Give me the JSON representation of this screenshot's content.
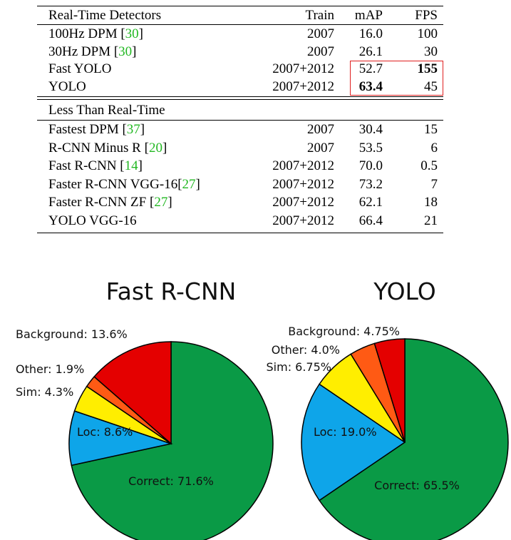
{
  "table": {
    "header": {
      "section1": "Real-Time Detectors",
      "train": "Train",
      "map": "mAP",
      "fps": "FPS"
    },
    "realtime_rows": [
      {
        "name": "100Hz DPM [",
        "ref": "30",
        "close": "]",
        "train": "2007",
        "map": "16.0",
        "fps": "100"
      },
      {
        "name": "30Hz DPM [",
        "ref": "30",
        "close": "]",
        "train": "2007",
        "map": "26.1",
        "fps": "30"
      },
      {
        "name": "Fast YOLO",
        "ref": "",
        "close": "",
        "train": "2007+2012",
        "map": "52.7",
        "fps": "155"
      },
      {
        "name": "YOLO",
        "ref": "",
        "close": "",
        "train": "2007+2012",
        "map": "63.4",
        "fps": "45"
      }
    ],
    "section2": "Less Than Real-Time",
    "slow_rows": [
      {
        "name": "Fastest DPM [",
        "ref": "37",
        "close": "]",
        "train": "2007",
        "map": "30.4",
        "fps": "15"
      },
      {
        "name": "R-CNN Minus R [",
        "ref": "20",
        "close": "]",
        "train": "2007",
        "map": "53.5",
        "fps": "6"
      },
      {
        "name": "Fast R-CNN [",
        "ref": "14",
        "close": "]",
        "train": "2007+2012",
        "map": "70.0",
        "fps": "0.5"
      },
      {
        "name": "Faster R-CNN VGG-16[",
        "ref": "27",
        "close": "]",
        "train": "2007+2012",
        "map": "73.2",
        "fps": "7"
      },
      {
        "name": "Faster R-CNN ZF [",
        "ref": "27",
        "close": "]",
        "train": "2007+2012",
        "map": "62.1",
        "fps": "18"
      },
      {
        "name": "YOLO VGG-16",
        "ref": "",
        "close": "",
        "train": "2007+2012",
        "map": "66.4",
        "fps": "21"
      }
    ]
  },
  "chart_data": [
    {
      "type": "pie",
      "title": "Fast R-CNN",
      "slices": [
        {
          "label": "Correct: 71.6%",
          "value": 71.6,
          "color": "#0a9a46"
        },
        {
          "label": "Loc: 8.6%",
          "value": 8.6,
          "color": "#0ea5e9"
        },
        {
          "label": "Sim: 4.3%",
          "value": 4.3,
          "color": "#ffee00"
        },
        {
          "label": "Other: 1.9%",
          "value": 1.9,
          "color": "#ff5a14"
        },
        {
          "label": "Background: 13.6%",
          "value": 13.6,
          "color": "#e40000"
        }
      ]
    },
    {
      "type": "pie",
      "title": "YOLO",
      "slices": [
        {
          "label": "Correct: 65.5%",
          "value": 65.5,
          "color": "#0a9a46"
        },
        {
          "label": "Loc: 19.0%",
          "value": 19.0,
          "color": "#0ea5e9"
        },
        {
          "label": "Sim: 6.75%",
          "value": 6.75,
          "color": "#ffee00"
        },
        {
          "label": "Other: 4.0%",
          "value": 4.0,
          "color": "#ff5a14"
        },
        {
          "label": "Background: 4.75%",
          "value": 4.75,
          "color": "#e40000"
        }
      ]
    }
  ]
}
